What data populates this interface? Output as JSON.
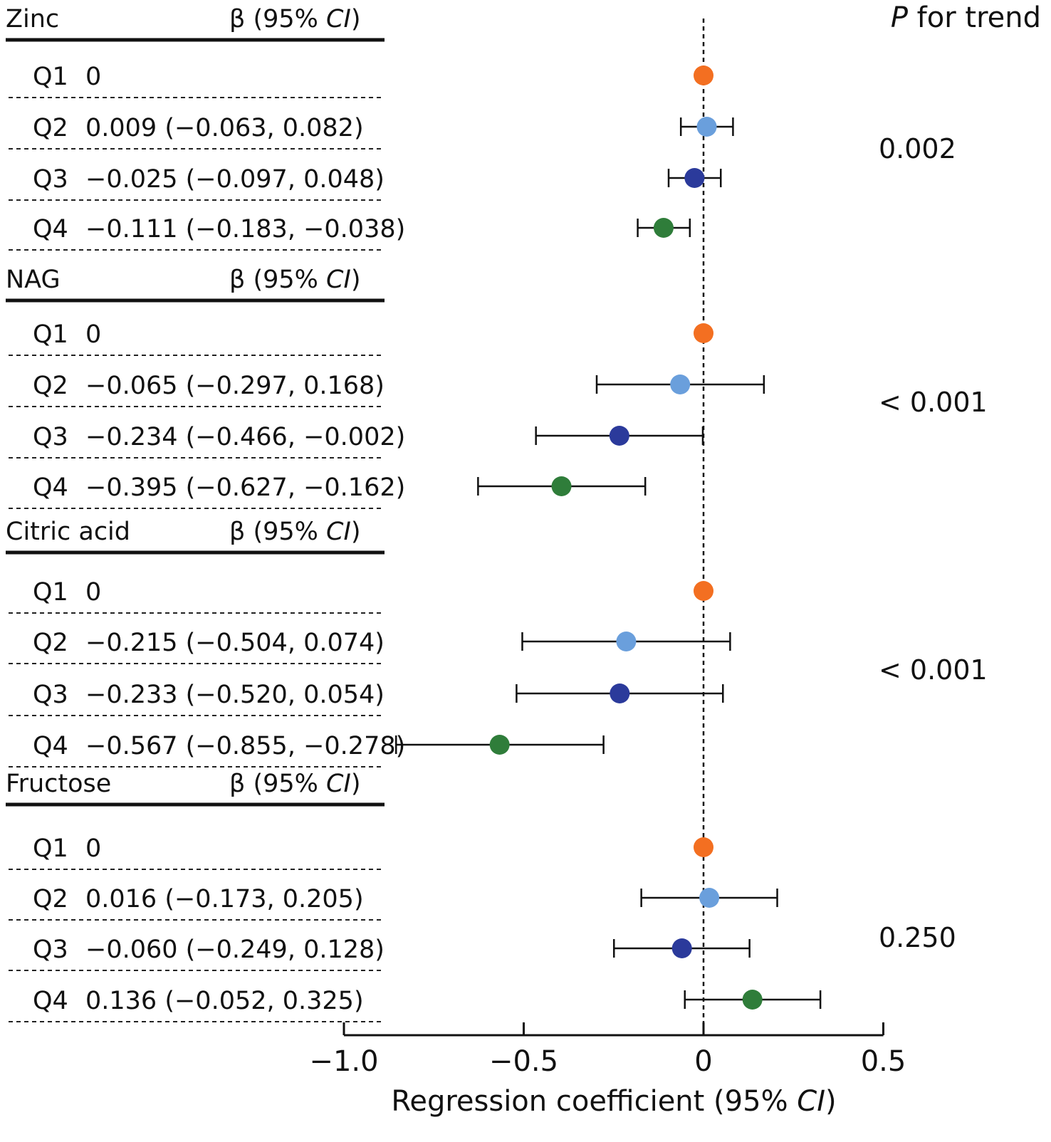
{
  "chart_data": {
    "type": "forest",
    "estimate_header": "β (95% CI)",
    "estimate_header_parts": {
      "prefix": "β (95% ",
      "italic": "CI",
      "suffix": ")"
    },
    "ptrend_header": "P for trend",
    "ptrend_header_parts": {
      "italic": "P",
      "rest": " for trend"
    },
    "xlabel": "Regression coefficient (95% CI)",
    "xlabel_parts": {
      "prefix": "Regression coefficient (95% ",
      "italic": "CI",
      "suffix": ")"
    },
    "xlim": [
      -1.0,
      0.5
    ],
    "xticks": [
      -1.0,
      -0.5,
      0,
      0.5
    ],
    "xtick_labels": [
      "−1.0",
      "−0.5",
      "0",
      "0.5"
    ],
    "reference_line": 0,
    "quartile_colors": {
      "Q1": "#f36f21",
      "Q2": "#6a9fdc",
      "Q3": "#2b3a9b",
      "Q4": "#2f7d3a"
    },
    "groups": [
      {
        "name": "Zinc",
        "p_trend": "0.002",
        "rows": [
          {
            "quartile": "Q1",
            "text": "0",
            "beta": 0,
            "lower": null,
            "upper": null
          },
          {
            "quartile": "Q2",
            "text": "0.009 (−0.063, 0.082)",
            "beta": 0.009,
            "lower": -0.063,
            "upper": 0.082
          },
          {
            "quartile": "Q3",
            "text": "−0.025 (−0.097, 0.048)",
            "beta": -0.025,
            "lower": -0.097,
            "upper": 0.048
          },
          {
            "quartile": "Q4",
            "text": "−0.111 (−0.183, −0.038)",
            "beta": -0.111,
            "lower": -0.183,
            "upper": -0.038
          }
        ]
      },
      {
        "name": "NAG",
        "p_trend": "< 0.001",
        "rows": [
          {
            "quartile": "Q1",
            "text": "0",
            "beta": 0,
            "lower": null,
            "upper": null
          },
          {
            "quartile": "Q2",
            "text": "−0.065 (−0.297, 0.168)",
            "beta": -0.065,
            "lower": -0.297,
            "upper": 0.168
          },
          {
            "quartile": "Q3",
            "text": "−0.234 (−0.466, −0.002)",
            "beta": -0.234,
            "lower": -0.466,
            "upper": -0.002
          },
          {
            "quartile": "Q4",
            "text": "−0.395 (−0.627, −0.162)",
            "beta": -0.395,
            "lower": -0.627,
            "upper": -0.162
          }
        ]
      },
      {
        "name": "Citric acid",
        "p_trend": "< 0.001",
        "rows": [
          {
            "quartile": "Q1",
            "text": "0",
            "beta": 0,
            "lower": null,
            "upper": null
          },
          {
            "quartile": "Q2",
            "text": "−0.215 (−0.504, 0.074)",
            "beta": -0.215,
            "lower": -0.504,
            "upper": 0.074
          },
          {
            "quartile": "Q3",
            "text": "−0.233 (−0.520, 0.054)",
            "beta": -0.233,
            "lower": -0.52,
            "upper": 0.054
          },
          {
            "quartile": "Q4",
            "text": "−0.567 (−0.855, −0.278)",
            "beta": -0.567,
            "lower": -0.855,
            "upper": -0.278
          }
        ]
      },
      {
        "name": "Fructose",
        "p_trend": "0.250",
        "rows": [
          {
            "quartile": "Q1",
            "text": "0",
            "beta": 0,
            "lower": null,
            "upper": null
          },
          {
            "quartile": "Q2",
            "text": "0.016 (−0.173, 0.205)",
            "beta": 0.016,
            "lower": -0.173,
            "upper": 0.205
          },
          {
            "quartile": "Q3",
            "text": "−0.060 (−0.249, 0.128)",
            "beta": -0.06,
            "lower": -0.249,
            "upper": 0.128
          },
          {
            "quartile": "Q4",
            "text": "0.136 (−0.052, 0.325)",
            "beta": 0.136,
            "lower": -0.052,
            "upper": 0.325
          }
        ]
      }
    ]
  }
}
